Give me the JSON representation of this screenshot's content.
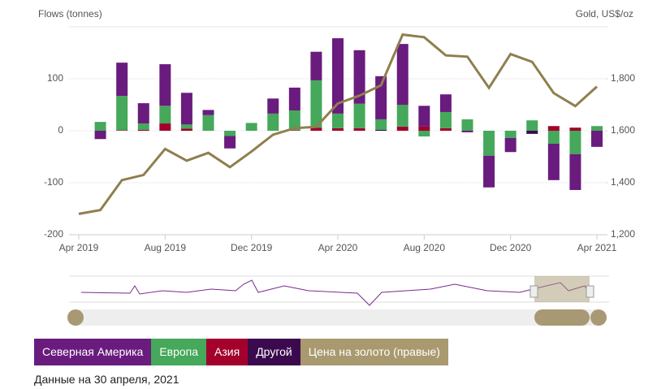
{
  "chart_data": {
    "type": "bar",
    "y_label": "Flows (tonnes)",
    "y2_label": "Gold, US$/oz",
    "categories": [
      "Apr 2019",
      null,
      null,
      null,
      "Aug 2019",
      null,
      null,
      null,
      "Dec 2019",
      null,
      null,
      null,
      "Apr 2020",
      null,
      null,
      null,
      "Aug 2020",
      null,
      null,
      null,
      "Dec 2020",
      null,
      null,
      null,
      "Apr 2021"
    ],
    "series": [
      {
        "name": "Северная Америка",
        "color": "#6a1b7e",
        "values": [
          null,
          -16,
          64,
          39,
          80,
          61,
          10,
          -24,
          0,
          29,
          44,
          55,
          145,
          103,
          83,
          117,
          40,
          34,
          -3,
          -61,
          -27,
          0,
          -70,
          -69,
          -31
        ]
      },
      {
        "name": "Европа",
        "color": "#45a85a",
        "values": [
          null,
          17,
          66,
          12,
          34,
          8,
          30,
          -10,
          15,
          33,
          38,
          91,
          28,
          47,
          20,
          42,
          -11,
          31,
          22,
          -48,
          -14,
          20,
          -25,
          -45,
          9
        ]
      },
      {
        "name": "Азия",
        "color": "#a3002c",
        "values": [
          null,
          0,
          1,
          2,
          14,
          4,
          0,
          0,
          0,
          0,
          1,
          6,
          5,
          5,
          0,
          8,
          8,
          5,
          0,
          0,
          0,
          0,
          9,
          6,
          0
        ]
      },
      {
        "name": "Другой",
        "color": "#3b0a4e",
        "values": [
          null,
          0,
          0,
          0,
          0,
          0,
          0,
          0,
          0,
          0,
          0,
          0,
          0,
          0,
          2,
          0,
          0,
          0,
          0,
          0,
          0,
          -6,
          0,
          0,
          0
        ]
      },
      {
        "name": "Цена на золото (правые)",
        "color": "#8f7f4f",
        "legend_color": "#a8996f",
        "type": "line",
        "axis": "y2",
        "values": [
          1280,
          1295,
          1410,
          1430,
          1530,
          1485,
          1515,
          1460,
          1520,
          1585,
          1610,
          1615,
          1705,
          1735,
          1775,
          1970,
          1960,
          1890,
          1885,
          1765,
          1895,
          1865,
          1745,
          1695,
          1770
        ]
      }
    ],
    "ylim": [
      -200,
      200
    ],
    "yticks": [
      -200,
      -100,
      0,
      100
    ],
    "y2lim": [
      1200,
      2000
    ],
    "y2ticks": [
      {
        "value": 1200,
        "label": "1,200"
      },
      {
        "value": 1400,
        "label": "1,400"
      },
      {
        "value": 1600,
        "label": "1,600"
      },
      {
        "value": 1800,
        "label": "1,800"
      }
    ],
    "grid": true,
    "note": "Данные на 30 апреля, 2021"
  }
}
